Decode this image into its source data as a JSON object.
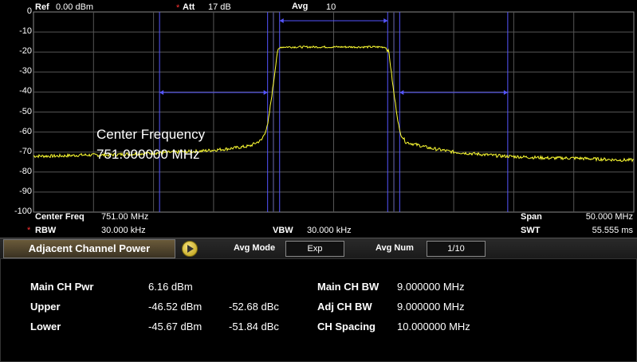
{
  "header": {
    "ref_label": "Ref",
    "ref_value": "0.00 dBm",
    "att_star": "*",
    "att_label": "Att",
    "att_value": "17 dB",
    "avg_label": "Avg",
    "avg_value": "10"
  },
  "y_axis": {
    "ticks": [
      "0",
      "-10",
      "-20",
      "-30",
      "-40",
      "-50",
      "-60",
      "-70",
      "-80",
      "-90",
      "-100"
    ]
  },
  "annotation": {
    "line1": "Center Frequency",
    "line2": "751.000000 MHz"
  },
  "footer": {
    "center_freq_label": "Center Freq",
    "center_freq_value": "751.00 MHz",
    "rbw_star": "*",
    "rbw_label": "RBW",
    "rbw_value": "30.000 kHz",
    "vbw_label": "VBW",
    "vbw_value": "30.000 kHz",
    "span_label": "Span",
    "span_value": "50.000 MHz",
    "swt_label": "SWT",
    "swt_value": "55.555 ms"
  },
  "panel": {
    "title": "Adjacent Channel Power",
    "avg_mode_label": "Avg Mode",
    "avg_mode_value": "Exp",
    "avg_num_label": "Avg Num",
    "avg_num_value": "1/10",
    "results": {
      "main_ch_pwr_label": "Main CH Pwr",
      "main_ch_pwr_value": "6.16 dBm",
      "upper_label": "Upper",
      "upper_dbm": "-46.52 dBm",
      "upper_dbc": "-52.68 dBc",
      "lower_label": "Lower",
      "lower_dbm": "-45.67 dBm",
      "lower_dbc": "-51.84 dBc",
      "main_ch_bw_label": "Main CH BW",
      "main_ch_bw_value": "9.000000 MHz",
      "adj_ch_bw_label": "Adj CH BW",
      "adj_ch_bw_value": "9.000000 MHz",
      "ch_spacing_label": "CH Spacing",
      "ch_spacing_value": "10.000000 MHz"
    }
  },
  "colors": {
    "trace": "#ffff33",
    "grid": "#555555",
    "channel_lines": "#5555ff",
    "background": "#000000"
  },
  "chart_data": {
    "type": "line",
    "title": "",
    "xlabel": "",
    "ylabel": "",
    "units": "dBm",
    "center_frequency_mhz": 751.0,
    "span_mhz": 50.0,
    "xlim_mhz": [
      726.0,
      776.0
    ],
    "ylim": [
      -100,
      0
    ],
    "grid": true,
    "main_channel_mhz": [
      746.5,
      755.5
    ],
    "lower_adjacent_channel_mhz": [
      736.5,
      745.5
    ],
    "upper_adjacent_channel_mhz": [
      756.5,
      765.5
    ],
    "series": [
      {
        "x": [
          726,
          728,
          730,
          732,
          734,
          736,
          738,
          740,
          742,
          744,
          745,
          745.5,
          746,
          746.3,
          746.6,
          747,
          749,
          751,
          753,
          755,
          755.3,
          755.6,
          756,
          756.5,
          757,
          759,
          761,
          763,
          765,
          767,
          769,
          771,
          773,
          775,
          776
        ],
        "values": [
          -72,
          -72,
          -71.5,
          -71.5,
          -71,
          -70.5,
          -70,
          -69.5,
          -68.5,
          -67,
          -64,
          -57,
          -35,
          -20,
          -17.5,
          -17.5,
          -17.5,
          -17.5,
          -17.5,
          -17.5,
          -17.5,
          -20,
          -40,
          -60,
          -65,
          -68,
          -70,
          -71,
          -72,
          -72.5,
          -73,
          -73,
          -73.5,
          -74,
          -74
        ]
      }
    ]
  }
}
